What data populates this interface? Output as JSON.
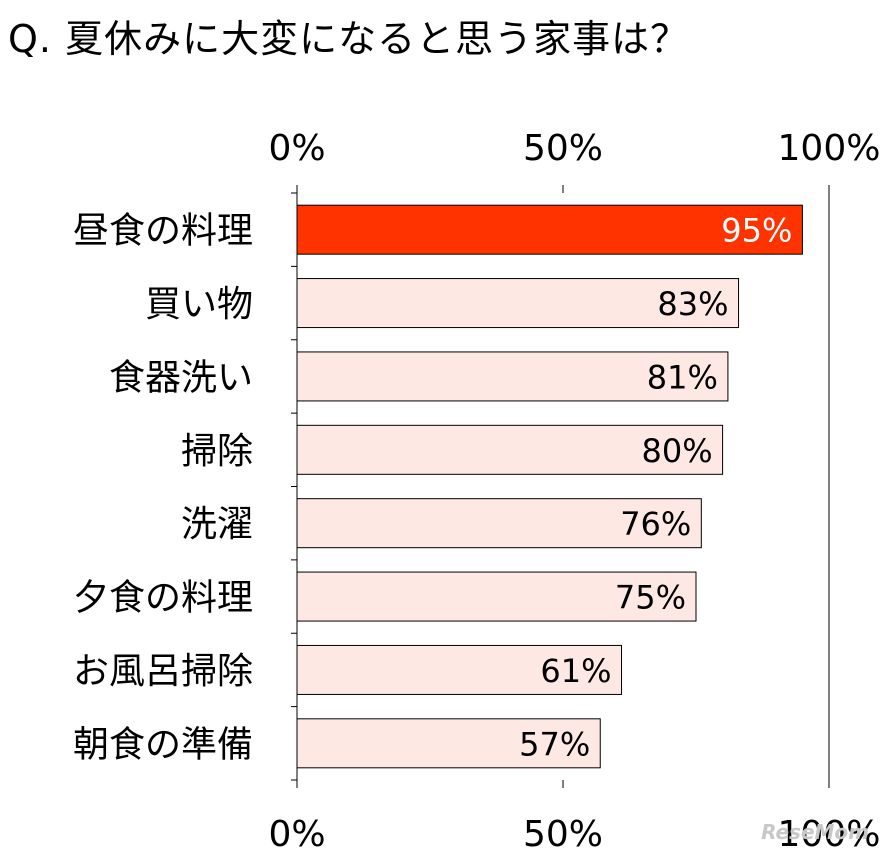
{
  "title": "Q. 夏休みに大変になると思う家事は？",
  "watermark": "ReseMom",
  "colors": {
    "highlight_fill": "#ff3300",
    "bar_fill": "#fde8e4",
    "bar_stroke": "#000000",
    "highlight_label": "#ffffff",
    "label": "#000000",
    "axis": "#000000"
  },
  "chart_data": {
    "type": "bar",
    "orientation": "horizontal",
    "categories": [
      "昼食の料理",
      "買い物",
      "食器洗い",
      "掃除",
      "洗濯",
      "夕食の料理",
      "お風呂掃除",
      "朝食の準備"
    ],
    "values": [
      95,
      83,
      81,
      80,
      76,
      75,
      61,
      57
    ],
    "value_labels": [
      "95%",
      "83%",
      "81%",
      "80%",
      "76%",
      "75%",
      "61%",
      "57%"
    ],
    "highlight_index": 0,
    "xlim": [
      0,
      100
    ],
    "ticks_top": [
      "0%",
      "50%",
      "100%"
    ],
    "ticks_bottom": [
      "0%",
      "50%",
      "100%"
    ],
    "grid": false,
    "legend": "none"
  }
}
